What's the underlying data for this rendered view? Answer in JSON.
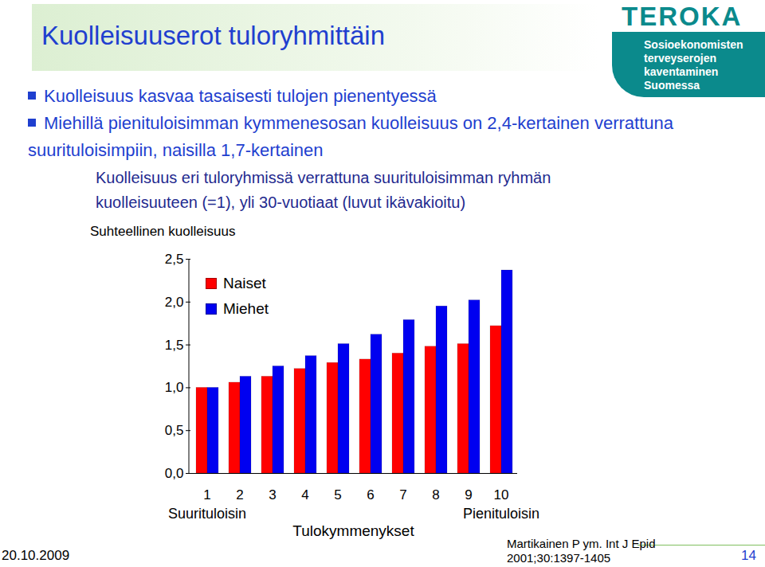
{
  "header": {
    "title": "Kuolleisuuserot tuloryhmittäin",
    "logo": {
      "name": "TEROKA",
      "lines": [
        "Sosioekonomisten",
        "terveyserojen",
        "kaventaminen",
        "Suomessa"
      ]
    }
  },
  "bullets": [
    "Kuolleisuus kasvaa tasaisesti tulojen pienentyessä",
    "Miehillä pienituloisimman kymmenesosan kuolleisuus on 2,4-kertainen verrattuna suurituloisimpiin, naisilla 1,7-kertainen"
  ],
  "chart_data": {
    "type": "bar",
    "title": "Kuolleisuus eri tuloryhmissä verrattuna suurituloisimman ryhmän kuolleisuuteen (=1), yli 30-vuotiaat (luvut ikävakioitu)",
    "y_label": "Suhteellinen kuolleisuus",
    "x_label": "Tulokymmenykset",
    "categories": [
      "1",
      "2",
      "3",
      "4",
      "5",
      "6",
      "7",
      "8",
      "9",
      "10"
    ],
    "annotations": [
      {
        "category": "1",
        "text": "Suurituloisin"
      },
      {
        "category": "10",
        "text": "Pienituloisin"
      }
    ],
    "series": [
      {
        "name": "Naiset",
        "color": "#ff0000",
        "values": [
          1.0,
          1.06,
          1.13,
          1.22,
          1.29,
          1.33,
          1.4,
          1.48,
          1.51,
          1.72
        ]
      },
      {
        "name": "Miehet",
        "color": "#0000f0",
        "values": [
          1.0,
          1.13,
          1.25,
          1.37,
          1.51,
          1.62,
          1.79,
          1.95,
          2.02,
          2.37
        ]
      }
    ],
    "ylim": [
      0,
      2.5
    ],
    "yticks": [
      {
        "value": 0,
        "label": "0,0"
      },
      {
        "value": 0.5,
        "label": "0,5"
      },
      {
        "value": 1,
        "label": "1,0"
      },
      {
        "value": 1.5,
        "label": "1,5"
      },
      {
        "value": 2,
        "label": "2,0"
      },
      {
        "value": 2.5,
        "label": "2,5"
      }
    ],
    "grid": false,
    "legend": "top-left"
  },
  "footer": {
    "date": "20.10.2009",
    "source": [
      "Martikainen P ym. Int J Epid",
      "2001;30:1397-1405"
    ],
    "page": "14"
  }
}
